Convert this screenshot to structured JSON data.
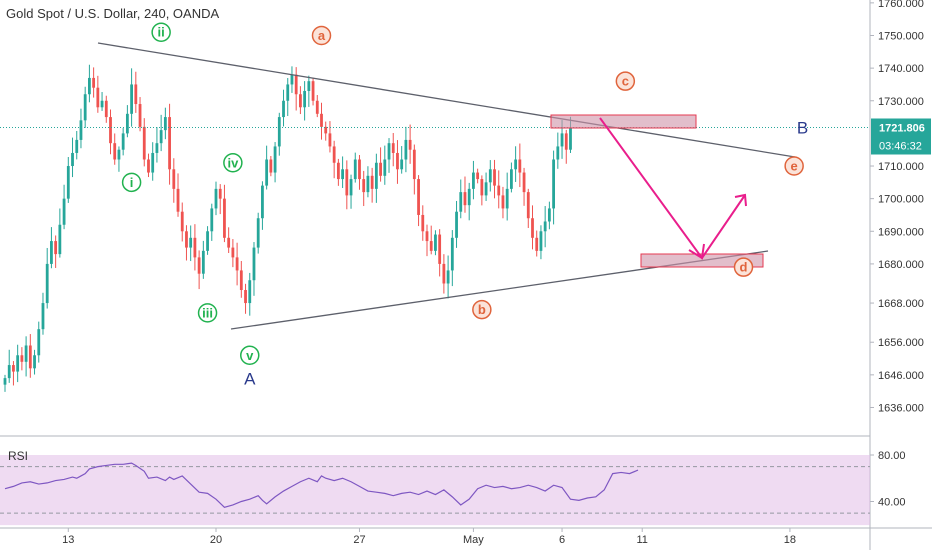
{
  "header": {
    "title": "Gold Spot / U.S. Dollar, 240, OANDA"
  },
  "price_badge": {
    "price": "1721.806",
    "countdown": "03:46:32"
  },
  "rsi": {
    "label": "RSI",
    "upper": "80.00",
    "lower": "40.00",
    "points": [
      [
        0,
        51
      ],
      [
        2,
        53
      ],
      [
        4,
        56
      ],
      [
        6,
        57
      ],
      [
        8,
        55
      ],
      [
        10,
        56
      ],
      [
        12,
        58
      ],
      [
        14,
        59
      ],
      [
        16,
        61
      ],
      [
        17,
        60
      ],
      [
        18,
        62
      ],
      [
        19,
        64
      ],
      [
        20,
        68
      ],
      [
        22,
        70
      ],
      [
        24,
        71
      ],
      [
        26,
        72
      ],
      [
        28,
        72
      ],
      [
        30,
        73
      ],
      [
        31,
        71
      ],
      [
        33,
        66
      ],
      [
        34,
        60
      ],
      [
        36,
        61
      ],
      [
        38,
        58
      ],
      [
        39,
        61
      ],
      [
        40,
        59
      ],
      [
        42,
        62
      ],
      [
        44,
        55
      ],
      [
        46,
        48
      ],
      [
        48,
        47
      ],
      [
        50,
        42
      ],
      [
        52,
        35
      ],
      [
        54,
        37
      ],
      [
        56,
        40
      ],
      [
        58,
        42
      ],
      [
        60,
        45
      ],
      [
        61,
        41
      ],
      [
        62,
        38
      ],
      [
        64,
        44
      ],
      [
        66,
        49
      ],
      [
        68,
        53
      ],
      [
        70,
        57
      ],
      [
        72,
        60
      ],
      [
        74,
        57
      ],
      [
        75,
        62
      ],
      [
        76,
        60
      ],
      [
        78,
        58
      ],
      [
        80,
        60
      ],
      [
        82,
        57
      ],
      [
        84,
        53
      ],
      [
        86,
        49
      ],
      [
        88,
        48
      ],
      [
        90,
        47
      ],
      [
        92,
        45
      ],
      [
        94,
        47
      ],
      [
        96,
        48
      ],
      [
        98,
        46
      ],
      [
        100,
        49
      ],
      [
        102,
        46
      ],
      [
        104,
        50
      ],
      [
        106,
        44
      ],
      [
        108,
        37
      ],
      [
        110,
        42
      ],
      [
        112,
        51
      ],
      [
        114,
        54
      ],
      [
        116,
        52
      ],
      [
        118,
        53
      ],
      [
        120,
        51
      ],
      [
        122,
        52
      ],
      [
        124,
        54
      ],
      [
        126,
        52
      ],
      [
        128,
        49
      ],
      [
        130,
        54
      ],
      [
        132,
        52
      ],
      [
        134,
        42
      ],
      [
        136,
        41
      ],
      [
        138,
        43
      ],
      [
        140,
        44
      ],
      [
        142,
        50
      ],
      [
        144,
        64
      ],
      [
        146,
        65
      ],
      [
        148,
        64
      ],
      [
        150,
        67
      ]
    ]
  },
  "chart_data": {
    "type": "candlestick",
    "title": "Gold Spot / U.S. Dollar, 240, OANDA",
    "ylim": [
      1631,
      1764
    ],
    "y_ticks": [
      1760,
      1750,
      1740,
      1730,
      1710,
      1700,
      1690,
      1680,
      1668,
      1656,
      1646,
      1636
    ],
    "y_tick_labels": [
      "1760.000",
      "1750.000",
      "1740.000",
      "1730.000",
      "1710.000",
      "1700.000",
      "1690.000",
      "1680.000",
      "1668.000",
      "1656.000",
      "1646.000",
      "1636.000"
    ],
    "x_ticks": [
      {
        "bar": 15,
        "label": "13"
      },
      {
        "bar": 50,
        "label": "20"
      },
      {
        "bar": 84,
        "label": "27"
      },
      {
        "bar": 111,
        "label": "May"
      },
      {
        "bar": 132,
        "label": "6"
      },
      {
        "bar": 151,
        "label": "11"
      },
      {
        "bar": 186,
        "label": "18"
      }
    ],
    "last_price": 1721.806,
    "closes": [
      1645,
      1649,
      1647,
      1652,
      1650,
      1655,
      1648,
      1652,
      1660,
      1668,
      1680,
      1687,
      1683,
      1692,
      1700,
      1710,
      1714,
      1718,
      1724,
      1732,
      1737,
      1734,
      1728,
      1730,
      1725,
      1717,
      1712,
      1715,
      1720,
      1726,
      1735,
      1729,
      1722,
      1712,
      1708,
      1714,
      1717,
      1721,
      1725,
      1709,
      1703,
      1696,
      1690,
      1685,
      1688,
      1682,
      1677,
      1684,
      1690,
      1697,
      1703,
      1700,
      1688,
      1685,
      1682,
      1678,
      1672,
      1668,
      1675,
      1685,
      1694,
      1704,
      1712,
      1708,
      1716,
      1725,
      1730,
      1735,
      1738,
      1732,
      1728,
      1733,
      1736,
      1730,
      1726,
      1722,
      1720,
      1716,
      1711,
      1706,
      1709,
      1701,
      1706,
      1712,
      1706,
      1702,
      1707,
      1703,
      1711,
      1707,
      1712,
      1717,
      1714,
      1709,
      1712,
      1718,
      1715,
      1706,
      1695,
      1690,
      1687,
      1684,
      1689,
      1680,
      1674,
      1678,
      1688,
      1696,
      1702,
      1698,
      1703,
      1708,
      1706,
      1701,
      1705,
      1709,
      1704,
      1701,
      1697,
      1703,
      1709,
      1712,
      1708,
      1702,
      1694,
      1688,
      1684,
      1690,
      1693,
      1697,
      1712,
      1716,
      1720,
      1715,
      1721.8
    ],
    "annotations": {
      "waves": [
        {
          "label": "i",
          "bar": 30,
          "price": 1705
        },
        {
          "label": "ii",
          "bar": 37,
          "price": 1751
        },
        {
          "label": "iii",
          "bar": 48,
          "price": 1665
        },
        {
          "label": "iv",
          "bar": 54,
          "price": 1711
        },
        {
          "label": "v",
          "bar": 58,
          "price": 1652
        },
        {
          "label": "a",
          "bar": 75,
          "price": 1750
        },
        {
          "label": "b",
          "bar": 113,
          "price": 1666
        },
        {
          "label": "c",
          "bar": 147,
          "price": 1736
        },
        {
          "label": "d",
          "bar": 175,
          "price": 1679
        },
        {
          "label": "e",
          "bar": 187,
          "price": 1710
        }
      ],
      "letters": [
        {
          "label": "A",
          "bar": 58,
          "price": 1643
        },
        {
          "label": "B",
          "bar": 189,
          "price": 1720
        }
      ]
    }
  }
}
